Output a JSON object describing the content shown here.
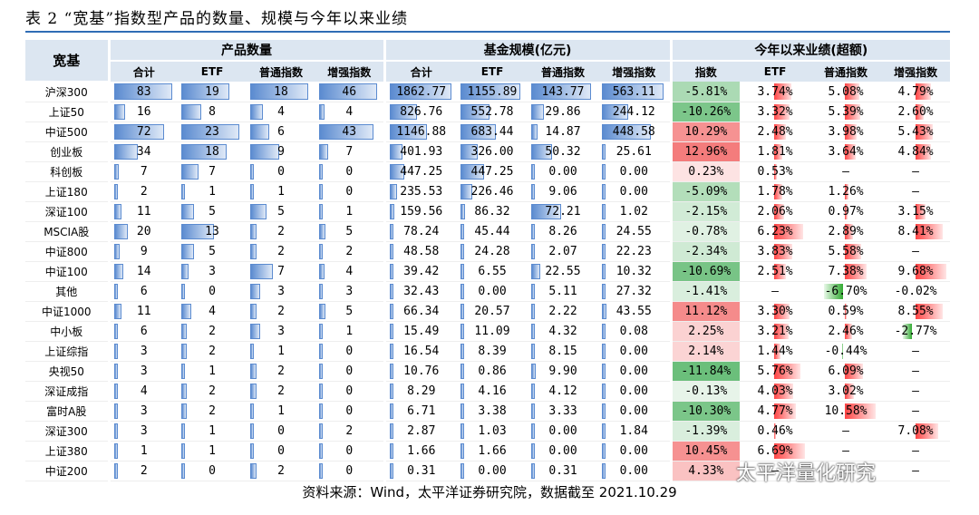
{
  "title": "表 2 “宽基”指数型产品的数量、规模与今年以来业绩",
  "headers": {
    "row_label": "宽基",
    "group1": "产品数量",
    "group2": "基金规模(亿元)",
    "group3": "今年以来业绩(超额)",
    "sub1": [
      "合计",
      "ETF",
      "普通指数",
      "增强指数"
    ],
    "sub2": [
      "合计",
      "ETF",
      "普通指数",
      "增强指数"
    ],
    "sub3": [
      "指数",
      "ETF",
      "普通指数",
      "增强指数"
    ]
  },
  "rows": [
    {
      "name": "沪深300",
      "c": [
        "83",
        "19",
        "18",
        "46"
      ],
      "s": [
        "1862.77",
        "1155.89",
        "143.77",
        "563.11"
      ],
      "p": [
        "-5.81%",
        "3.74%",
        "5.08%",
        "4.79%"
      ]
    },
    {
      "name": "上证50",
      "c": [
        "16",
        "8",
        "4",
        "4"
      ],
      "s": [
        "826.76",
        "552.78",
        "29.86",
        "244.12"
      ],
      "p": [
        "-10.26%",
        "3.32%",
        "5.39%",
        "2.60%"
      ]
    },
    {
      "name": "中证500",
      "c": [
        "72",
        "23",
        "6",
        "43"
      ],
      "s": [
        "1146.88",
        "683.44",
        "14.87",
        "448.58"
      ],
      "p": [
        "10.29%",
        "2.48%",
        "3.98%",
        "5.43%"
      ]
    },
    {
      "name": "创业板",
      "c": [
        "34",
        "18",
        "9",
        "7"
      ],
      "s": [
        "401.93",
        "326.00",
        "50.32",
        "25.61"
      ],
      "p": [
        "12.96%",
        "1.81%",
        "3.64%",
        "4.84%"
      ]
    },
    {
      "name": "科创板",
      "c": [
        "7",
        "7",
        "0",
        "0"
      ],
      "s": [
        "447.25",
        "447.25",
        "0.00",
        "0.00"
      ],
      "p": [
        "0.23%",
        "0.53%",
        "–",
        "–"
      ]
    },
    {
      "name": "上证180",
      "c": [
        "2",
        "1",
        "1",
        "0"
      ],
      "s": [
        "235.53",
        "226.46",
        "9.06",
        "0.00"
      ],
      "p": [
        "-5.09%",
        "1.78%",
        "1.26%",
        "–"
      ]
    },
    {
      "name": "深证100",
      "c": [
        "11",
        "5",
        "5",
        "1"
      ],
      "s": [
        "159.56",
        "86.32",
        "72.21",
        "1.02"
      ],
      "p": [
        "-2.15%",
        "2.06%",
        "0.97%",
        "3.15%"
      ]
    },
    {
      "name": "MSCIA股",
      "c": [
        "20",
        "13",
        "2",
        "5"
      ],
      "s": [
        "78.24",
        "45.44",
        "8.26",
        "24.55"
      ],
      "p": [
        "-0.78%",
        "6.23%",
        "2.89%",
        "8.41%"
      ]
    },
    {
      "name": "中证800",
      "c": [
        "9",
        "5",
        "2",
        "2"
      ],
      "s": [
        "48.58",
        "24.28",
        "2.07",
        "22.23"
      ],
      "p": [
        "-2.34%",
        "3.83%",
        "5.58%",
        "–"
      ]
    },
    {
      "name": "中证100",
      "c": [
        "14",
        "3",
        "7",
        "4"
      ],
      "s": [
        "39.42",
        "6.55",
        "22.55",
        "10.32"
      ],
      "p": [
        "-10.69%",
        "2.51%",
        "7.38%",
        "9.68%"
      ]
    },
    {
      "name": "其他",
      "c": [
        "6",
        "0",
        "3",
        "3"
      ],
      "s": [
        "32.43",
        "0.00",
        "5.11",
        "27.32"
      ],
      "p": [
        "-1.41%",
        "–",
        "-6.70%",
        "-0.02%"
      ]
    },
    {
      "name": "中证1000",
      "c": [
        "11",
        "4",
        "2",
        "5"
      ],
      "s": [
        "66.34",
        "20.57",
        "2.22",
        "43.55"
      ],
      "p": [
        "11.12%",
        "3.30%",
        "0.59%",
        "8.55%"
      ]
    },
    {
      "name": "中小板",
      "c": [
        "6",
        "2",
        "3",
        "1"
      ],
      "s": [
        "15.49",
        "11.09",
        "4.32",
        "0.08"
      ],
      "p": [
        "2.25%",
        "3.21%",
        "2.46%",
        "-2.77%"
      ]
    },
    {
      "name": "上证综指",
      "c": [
        "3",
        "2",
        "1",
        "0"
      ],
      "s": [
        "16.54",
        "8.39",
        "8.15",
        "0.00"
      ],
      "p": [
        "2.14%",
        "1.44%",
        "-0.44%",
        "–"
      ]
    },
    {
      "name": "央视50",
      "c": [
        "3",
        "1",
        "2",
        "0"
      ],
      "s": [
        "10.76",
        "0.86",
        "9.90",
        "0.00"
      ],
      "p": [
        "-11.84%",
        "5.76%",
        "6.09%",
        "–"
      ]
    },
    {
      "name": "深证成指",
      "c": [
        "4",
        "2",
        "2",
        "0"
      ],
      "s": [
        "8.29",
        "4.16",
        "4.12",
        "0.00"
      ],
      "p": [
        "-0.13%",
        "4.03%",
        "3.02%",
        "–"
      ]
    },
    {
      "name": "富时A股",
      "c": [
        "3",
        "2",
        "1",
        "0"
      ],
      "s": [
        "6.71",
        "3.38",
        "3.33",
        "0.00"
      ],
      "p": [
        "-10.30%",
        "4.77%",
        "10.58%",
        "–"
      ]
    },
    {
      "name": "深证300",
      "c": [
        "3",
        "1",
        "0",
        "2"
      ],
      "s": [
        "2.87",
        "1.03",
        "0.00",
        "1.84"
      ],
      "p": [
        "-1.39%",
        "0.46%",
        "–",
        "7.08%"
      ]
    },
    {
      "name": "上证380",
      "c": [
        "1",
        "1",
        "0",
        "0"
      ],
      "s": [
        "1.66",
        "1.66",
        "0.00",
        "0.00"
      ],
      "p": [
        "10.45%",
        "6.69%",
        "–",
        "–"
      ]
    },
    {
      "name": "中证200",
      "c": [
        "2",
        "0",
        "2",
        "0"
      ],
      "s": [
        "0.31",
        "0.00",
        "0.31",
        "0.00"
      ],
      "p": [
        "4.33%",
        "–",
        "–",
        "–"
      ]
    }
  ],
  "colors": {
    "blue_bar": "#5b8bd0",
    "red": "#f24040",
    "green": "#3aa655",
    "header_bg": "#dce6f1",
    "title_rule": "#2f6db5"
  },
  "source": "资料来源：Wind，太平洋证券研究院，数据截至 2021.10.29",
  "watermark": "太平洋量化研究"
}
